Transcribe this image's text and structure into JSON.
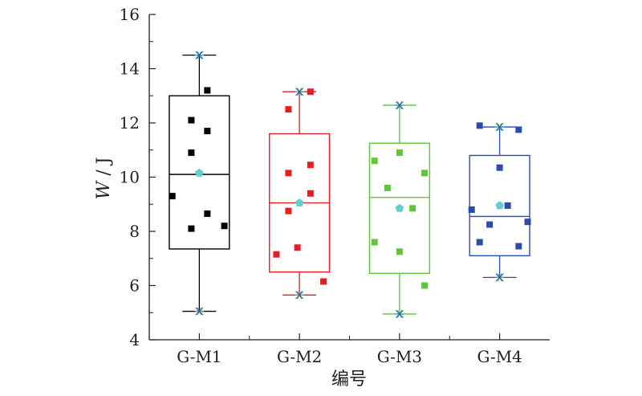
{
  "chart_data": {
    "type": "box",
    "title": "",
    "xlabel": "编号",
    "ylabel": "W / J",
    "ylabel_main": "W",
    "ylabel_unit": " / J",
    "ylim": [
      4,
      16
    ],
    "yticks": [
      4,
      6,
      8,
      10,
      12,
      14,
      16
    ],
    "grid": false,
    "legend": "none",
    "categories": [
      "G-M1",
      "G-M2",
      "G-M3",
      "G-M4"
    ],
    "series": [
      {
        "color": "#000000",
        "box": {
          "q1": 7.35,
          "median": 10.1,
          "q3": 13.0,
          "whisker_low": 5.05,
          "whisker_high": 14.5,
          "mean": 10.15
        },
        "points": [
          {
            "offset": -0.27,
            "y": 9.3
          },
          {
            "offset": -0.08,
            "y": 8.1
          },
          {
            "offset": -0.08,
            "y": 10.9
          },
          {
            "offset": -0.08,
            "y": 12.1
          },
          {
            "offset": 0.08,
            "y": 8.65
          },
          {
            "offset": 0.08,
            "y": 11.7
          },
          {
            "offset": 0.08,
            "y": 13.2
          },
          {
            "offset": 0.25,
            "y": 8.2
          }
        ]
      },
      {
        "color": "#e31e24",
        "box": {
          "q1": 6.5,
          "median": 9.05,
          "q3": 11.6,
          "whisker_low": 5.65,
          "whisker_high": 13.15,
          "mean": 9.05
        },
        "points": [
          {
            "offset": -0.23,
            "y": 7.15
          },
          {
            "offset": -0.11,
            "y": 8.75
          },
          {
            "offset": -0.11,
            "y": 10.15
          },
          {
            "offset": -0.11,
            "y": 12.5
          },
          {
            "offset": -0.02,
            "y": 7.4
          },
          {
            "offset": 0.11,
            "y": 9.4
          },
          {
            "offset": 0.11,
            "y": 10.45
          },
          {
            "offset": 0.11,
            "y": 13.15
          },
          {
            "offset": 0.24,
            "y": 6.15
          }
        ]
      },
      {
        "color": "#61c43a",
        "box": {
          "q1": 6.45,
          "median": 9.25,
          "q3": 11.25,
          "whisker_low": 4.95,
          "whisker_high": 12.65,
          "mean": 8.85
        },
        "points": [
          {
            "offset": -0.25,
            "y": 7.6
          },
          {
            "offset": -0.25,
            "y": 10.6
          },
          {
            "offset": -0.12,
            "y": 9.6
          },
          {
            "offset": 0.0,
            "y": 7.25
          },
          {
            "offset": 0.0,
            "y": 10.9
          },
          {
            "offset": 0.13,
            "y": 8.85
          },
          {
            "offset": 0.25,
            "y": 6.0
          },
          {
            "offset": 0.25,
            "y": 10.15
          }
        ]
      },
      {
        "color": "#2b4ca8",
        "box": {
          "q1": 7.1,
          "median": 8.55,
          "q3": 10.8,
          "whisker_low": 6.3,
          "whisker_high": 11.85,
          "mean": 8.95
        },
        "points": [
          {
            "offset": -0.28,
            "y": 8.8
          },
          {
            "offset": -0.2,
            "y": 7.6
          },
          {
            "offset": -0.2,
            "y": 11.9
          },
          {
            "offset": -0.1,
            "y": 8.25
          },
          {
            "offset": 0.0,
            "y": 10.35
          },
          {
            "offset": 0.08,
            "y": 8.95
          },
          {
            "offset": 0.19,
            "y": 7.45
          },
          {
            "offset": 0.19,
            "y": 11.75
          },
          {
            "offset": 0.28,
            "y": 8.35
          }
        ]
      }
    ],
    "outlier_marker_color": "#35a9d8",
    "mean_marker_color": "#63cdd0"
  }
}
